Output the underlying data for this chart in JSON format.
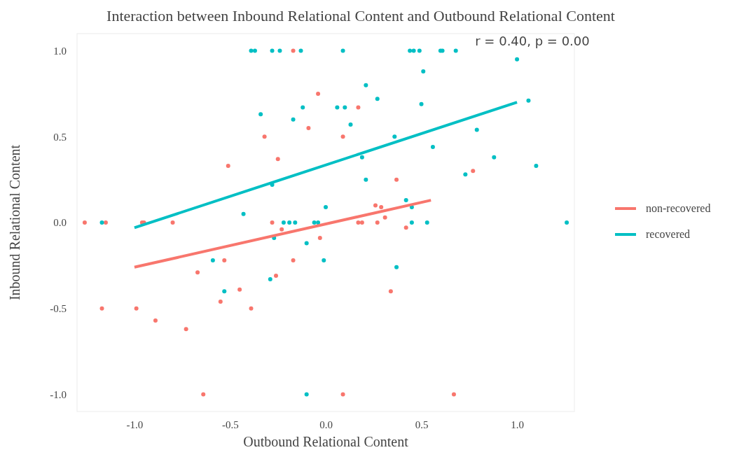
{
  "chart_data": {
    "type": "scatter",
    "title": "Interaction between Inbound Relational Content and Outbound Relational Content",
    "xlabel": "Outbound Relational Content",
    "ylabel": "Inbound Relational Content",
    "annotations": [
      "r = 0.40, p = 0.00"
    ],
    "xlim": [
      -1.3,
      1.3
    ],
    "ylim": [
      -1.1,
      1.1
    ],
    "xticks": [
      {
        "value": -1,
        "label": "-1.0"
      },
      {
        "value": -0.5,
        "label": "-0.5"
      },
      {
        "value": 0,
        "label": "0.0"
      },
      {
        "value": 0.5,
        "label": "0.5"
      },
      {
        "value": 1,
        "label": "1.0"
      }
    ],
    "yticks": [
      {
        "value": -1,
        "label": "-1.0"
      },
      {
        "value": -0.5,
        "label": "-0.5"
      },
      {
        "value": 0,
        "label": "0.0"
      },
      {
        "value": 0.5,
        "label": "0.5"
      },
      {
        "value": 1,
        "label": "1.0"
      }
    ],
    "grid": false,
    "legend": "right",
    "marker": "circle",
    "series": [
      {
        "name": "non-recovered",
        "color": "#f8766d",
        "x": [
          -1.26,
          -1.15,
          -0.96,
          -0.95,
          -0.8,
          -0.17,
          -0.04,
          -0.09,
          -0.32,
          -0.25,
          -0.51,
          -0.28,
          -0.23,
          -0.03,
          -0.53,
          -0.17,
          -0.67,
          -0.26,
          -0.45,
          -0.55,
          -1.17,
          -0.99,
          -0.39,
          -0.89,
          -0.73,
          -0.64,
          0.17,
          0.09,
          0.37,
          0.77,
          0.26,
          0.29,
          0.31,
          0.17,
          0.19,
          0.27,
          0.42,
          0.09,
          0.67,
          0.34
        ],
        "values": [
          0,
          0,
          0,
          0,
          0,
          1,
          0.75,
          0.55,
          0.5,
          0.37,
          0.33,
          0,
          -0.04,
          -0.09,
          -0.22,
          -0.22,
          -0.29,
          -0.31,
          -0.39,
          -0.46,
          -0.5,
          -0.5,
          -0.5,
          -0.57,
          -0.62,
          -1,
          0.67,
          0.5,
          0.25,
          0.3,
          0.1,
          0.09,
          0.03,
          0,
          0,
          0,
          -0.03,
          -1,
          -1,
          -0.4
        ]
      },
      {
        "name": "recovered",
        "color": "#00bfc4",
        "x": [
          -0.39,
          -0.37,
          -0.28,
          -0.24,
          -0.13,
          0.09,
          0.44,
          0.46,
          0.49,
          0.6,
          0.61,
          0.68,
          1,
          0.51,
          0.21,
          0.27,
          1.06,
          0.06,
          0.1,
          0.5,
          0.13,
          0.36,
          0.79,
          0.56,
          0.88,
          0.19,
          1.1,
          0.73,
          0.21,
          0.42,
          0.45,
          0.45,
          0.53,
          1.26,
          -0.34,
          -0.12,
          -0.17,
          -0.28,
          -0.43,
          0,
          -1.17,
          -0.22,
          -0.19,
          -0.16,
          -0.06,
          -0.04,
          -0.27,
          -0.1,
          -0.59,
          -0.01,
          -0.29,
          -0.53,
          -0.1,
          0.37
        ],
        "values": [
          1,
          1,
          1,
          1,
          1,
          1,
          1,
          1,
          1,
          1,
          1,
          1,
          0.95,
          0.88,
          0.8,
          0.72,
          0.71,
          0.67,
          0.67,
          0.69,
          0.57,
          0.5,
          0.54,
          0.44,
          0.38,
          0.38,
          0.33,
          0.28,
          0.25,
          0.13,
          0.09,
          0,
          0,
          0,
          0.63,
          0.67,
          0.6,
          0.22,
          0.05,
          0.09,
          0,
          0,
          0,
          0,
          0,
          0,
          -0.09,
          -0.12,
          -0.22,
          -0.22,
          -0.33,
          -0.4,
          -1,
          -0.26
        ]
      },
      {
        "type": "line",
        "marker": "none",
        "color": "#f8766d",
        "x": [
          -1,
          0.55
        ],
        "values": [
          -0.26,
          0.13
        ]
      },
      {
        "type": "line",
        "marker": "none",
        "color": "#00bfc4",
        "x": [
          -1,
          1
        ],
        "values": [
          -0.03,
          0.7
        ]
      }
    ]
  }
}
